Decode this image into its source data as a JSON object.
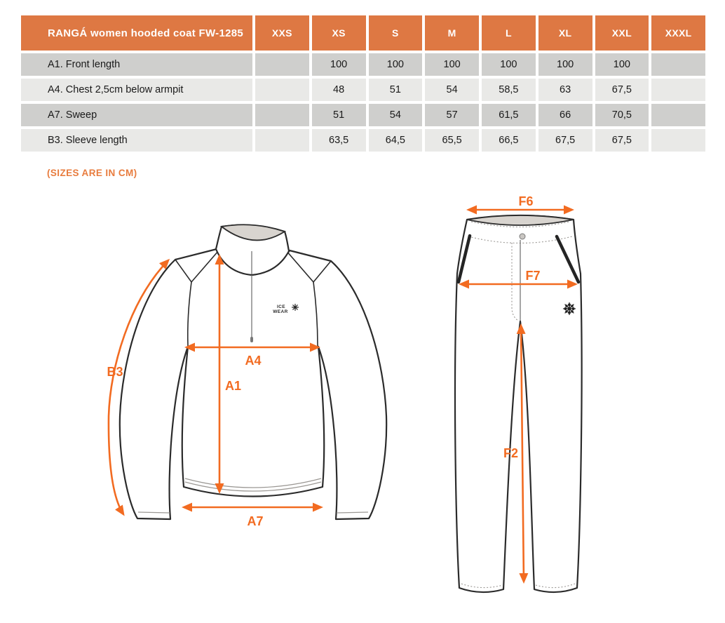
{
  "colors": {
    "accent": "#F26B21",
    "header-bg": "#DE7843",
    "row-dark": "#CFCFCD",
    "row-light": "#E9E9E7",
    "ink": "#1A1A1A",
    "note": "#E87C3E"
  },
  "table": {
    "title": "RANGÁ women hooded coat FW-1285",
    "columns": [
      "XXS",
      "XS",
      "S",
      "M",
      "L",
      "XL",
      "XXL",
      "XXXL"
    ],
    "rows": [
      {
        "label": "A1. Front length",
        "values": [
          "",
          "100",
          "100",
          "100",
          "100",
          "100",
          "100",
          ""
        ]
      },
      {
        "label": "A4. Chest 2,5cm below armpit",
        "values": [
          "",
          "48",
          "51",
          "54",
          "58,5",
          "63",
          "67,5",
          ""
        ]
      },
      {
        "label": "A7. Sweep",
        "values": [
          "",
          "51",
          "54",
          "57",
          "61,5",
          "66",
          "70,5",
          ""
        ]
      },
      {
        "label": "B3. Sleeve length",
        "values": [
          "",
          "63,5",
          "64,5",
          "65,5",
          "66,5",
          "67,5",
          "67,5",
          ""
        ]
      }
    ]
  },
  "note": "(SIZES ARE IN CM)",
  "diagram": {
    "jacket": {
      "logo_line1": "ICE",
      "logo_line2": "WEAR",
      "labels": {
        "b3": "B3",
        "a4": "A4",
        "a1": "A1",
        "a7": "A7"
      }
    },
    "pants": {
      "labels": {
        "f6": "F6",
        "f7": "F7",
        "f2": "F2"
      }
    }
  }
}
